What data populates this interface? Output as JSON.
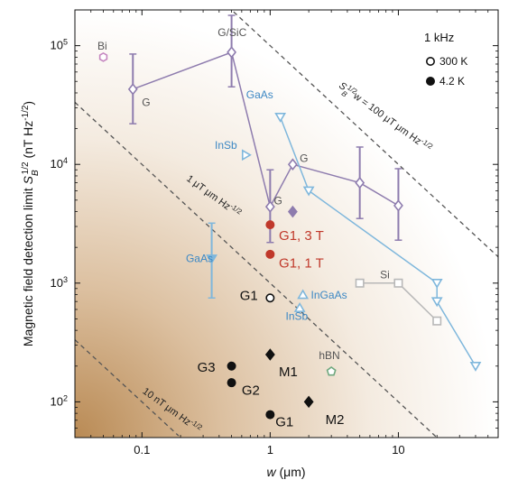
{
  "chart_data": {
    "type": "scatter",
    "x_scale": "log",
    "y_scale": "log",
    "xlim": [
      0.03,
      60
    ],
    "ylim": [
      50,
      200000
    ],
    "xlabel": "w (μm)",
    "ylabel": "Magnetic field detection limit S_B^1/2 (nT Hz^-1/2)",
    "x_ticks": [
      "0.1",
      "1",
      "10"
    ],
    "x_tick_values": [
      0.1,
      1,
      10
    ],
    "y_ticks": [
      {
        "base": "10",
        "exp": "2",
        "value": 100
      },
      {
        "base": "10",
        "exp": "3",
        "value": 1000
      },
      {
        "base": "10",
        "exp": "4",
        "value": 10000
      },
      {
        "base": "10",
        "exp": "5",
        "value": 100000
      }
    ],
    "legend": {
      "title": "1 kHz",
      "placement": "top-right",
      "entries": [
        {
          "label": "300 K",
          "marker": "open-circle"
        },
        {
          "label": "4.2 K",
          "marker": "filled-circle"
        }
      ]
    },
    "reference_lines": [
      {
        "label": "10 nT μm Hz^-1/2",
        "value": 10,
        "text_main": "10 nT μm Hz",
        "text_exp": "-1/2"
      },
      {
        "label": "1 μT μm Hz^-1/2",
        "value": 1000,
        "text_main": "1 μT μm Hz",
        "text_exp": "-1/2"
      },
      {
        "label": "S_B^1/2 w = 100 μT μm Hz^-1/2",
        "value": 100000,
        "text_main": "w = 100 μT μm Hz",
        "text_exp": "-1/2"
      }
    ],
    "series": [
      {
        "name": "G",
        "color": "#8e7cae",
        "marker": "open-diamond",
        "connected": true,
        "points": [
          {
            "x": 0.085,
            "y": 43000,
            "yerr_low": 22000,
            "yerr_high": 85000
          },
          {
            "x": 0.5,
            "y": 88000,
            "yerr_low": 45000,
            "yerr_high": 180000
          },
          {
            "x": 1.0,
            "y": 4400,
            "yerr_low": 2200,
            "yerr_high": 9000
          },
          {
            "x": 1.5,
            "y": 10000
          },
          {
            "x": 5.0,
            "y": 7000,
            "yerr_low": 3500,
            "yerr_high": 14000
          },
          {
            "x": 10.0,
            "y": 4500,
            "yerr_low": 2300,
            "yerr_high": 9200
          }
        ]
      },
      {
        "name": "G (filled)",
        "color": "#8e7cae",
        "marker": "filled-diamond",
        "connected": false,
        "points": [
          {
            "x": 1.5,
            "y": 4000
          }
        ]
      },
      {
        "name": "GaAs / InSb / InGaAs",
        "color": "#7fb7dc",
        "marker": "open-triangle-down",
        "connected": true,
        "points": [
          {
            "x": 1.2,
            "y": 25000
          },
          {
            "x": 2.0,
            "y": 6000
          },
          {
            "x": 20.0,
            "y": 1000
          },
          {
            "x": 20.0,
            "y": 700
          },
          {
            "x": 40.0,
            "y": 200
          }
        ]
      },
      {
        "name": "InSb (2)",
        "color": "#7fb7dc",
        "marker": "open-triangle-right",
        "connected": false,
        "points": [
          {
            "x": 0.65,
            "y": 12000
          }
        ]
      },
      {
        "name": "GaAs (2)",
        "color": "#7fb7dc",
        "marker": "filled-triangle-down",
        "connected": false,
        "points": [
          {
            "x": 0.35,
            "y": 1600,
            "yerr_low": 750,
            "yerr_high": 3200
          }
        ]
      },
      {
        "name": "InGaAs / InSb",
        "color": "#7fb7dc",
        "marker": "open-triangle-up",
        "connected": false,
        "points": [
          {
            "x": 1.8,
            "y": 800
          },
          {
            "x": 1.7,
            "y": 620
          }
        ]
      },
      {
        "name": "Si",
        "color": "#b8b8b8",
        "marker": "open-square",
        "connected": true,
        "points": [
          {
            "x": 5.0,
            "y": 1000
          },
          {
            "x": 10.0,
            "y": 1000
          },
          {
            "x": 20.0,
            "y": 480
          }
        ]
      },
      {
        "name": "Bi",
        "color": "#c586c0",
        "marker": "open-hexagon",
        "connected": false,
        "points": [
          {
            "x": 0.05,
            "y": 80000
          }
        ]
      },
      {
        "name": "hBN",
        "color": "#6fa87f",
        "marker": "open-pentagon",
        "connected": false,
        "points": [
          {
            "x": 3.0,
            "y": 180
          }
        ]
      },
      {
        "name": "G1, 3 T",
        "color": "#c0392b",
        "marker": "filled-circle",
        "connected": false,
        "points": [
          {
            "x": 1.0,
            "y": 3100
          }
        ]
      },
      {
        "name": "G1, 1 T",
        "color": "#c0392b",
        "marker": "filled-circle",
        "connected": false,
        "points": [
          {
            "x": 1.0,
            "y": 1750
          }
        ]
      },
      {
        "name": "G1 (300 K)",
        "color": "#111111",
        "marker": "open-circle",
        "connected": false,
        "points": [
          {
            "x": 1.0,
            "y": 750
          }
        ]
      },
      {
        "name": "G1, G2, G3 (4.2 K)",
        "color": "#111111",
        "marker": "filled-circle",
        "connected": false,
        "points": [
          {
            "x": 0.5,
            "y": 200
          },
          {
            "x": 0.5,
            "y": 145
          },
          {
            "x": 1.0,
            "y": 78
          }
        ]
      },
      {
        "name": "M1, M2",
        "color": "#111111",
        "marker": "filled-diamond",
        "connected": false,
        "points": [
          {
            "x": 1.0,
            "y": 250
          },
          {
            "x": 2.0,
            "y": 100
          }
        ]
      }
    ],
    "annotations": [
      {
        "text": "Bi",
        "x": 0.045,
        "y": 93000,
        "style": "pink"
      },
      {
        "text": "G/SiC",
        "x": 0.39,
        "y": 120000,
        "style": "gray"
      },
      {
        "text": "G",
        "x": 0.1,
        "y": 31000,
        "style": "gray"
      },
      {
        "text": "G",
        "x": 1.7,
        "y": 10500,
        "style": "gray"
      },
      {
        "text": "G",
        "x": 1.07,
        "y": 4600,
        "style": "gray"
      },
      {
        "text": "GaAs",
        "x": 0.65,
        "y": 36000,
        "style": "blue"
      },
      {
        "text": "InSb",
        "x": 0.37,
        "y": 13500,
        "style": "blue"
      },
      {
        "text": "GaAs",
        "x": 0.22,
        "y": 1500,
        "style": "blue"
      },
      {
        "text": "InGaAs",
        "x": 2.08,
        "y": 740,
        "style": "blue"
      },
      {
        "text": "InSb",
        "x": 1.32,
        "y": 490,
        "style": "blue"
      },
      {
        "text": "Si",
        "x": 7.2,
        "y": 1100,
        "style": "gray"
      },
      {
        "text": "hBN",
        "x": 2.4,
        "y": 230,
        "style": "green"
      },
      {
        "text": "G1, 3 T",
        "x": 1.17,
        "y": 2300,
        "style": "red"
      },
      {
        "text": "G1, 1 T",
        "x": 1.17,
        "y": 1350,
        "style": "red"
      },
      {
        "text": "G1",
        "x": 0.58,
        "y": 720,
        "style": "black"
      },
      {
        "text": "G3",
        "x": 0.27,
        "y": 180,
        "style": "black"
      },
      {
        "text": "G2",
        "x": 0.6,
        "y": 115,
        "style": "black"
      },
      {
        "text": "M1",
        "x": 1.17,
        "y": 165,
        "style": "black"
      },
      {
        "text": "M2",
        "x": 2.7,
        "y": 65,
        "style": "black"
      },
      {
        "text": "G1",
        "x": 1.1,
        "y": 62,
        "style": "black"
      }
    ],
    "grid": false
  }
}
